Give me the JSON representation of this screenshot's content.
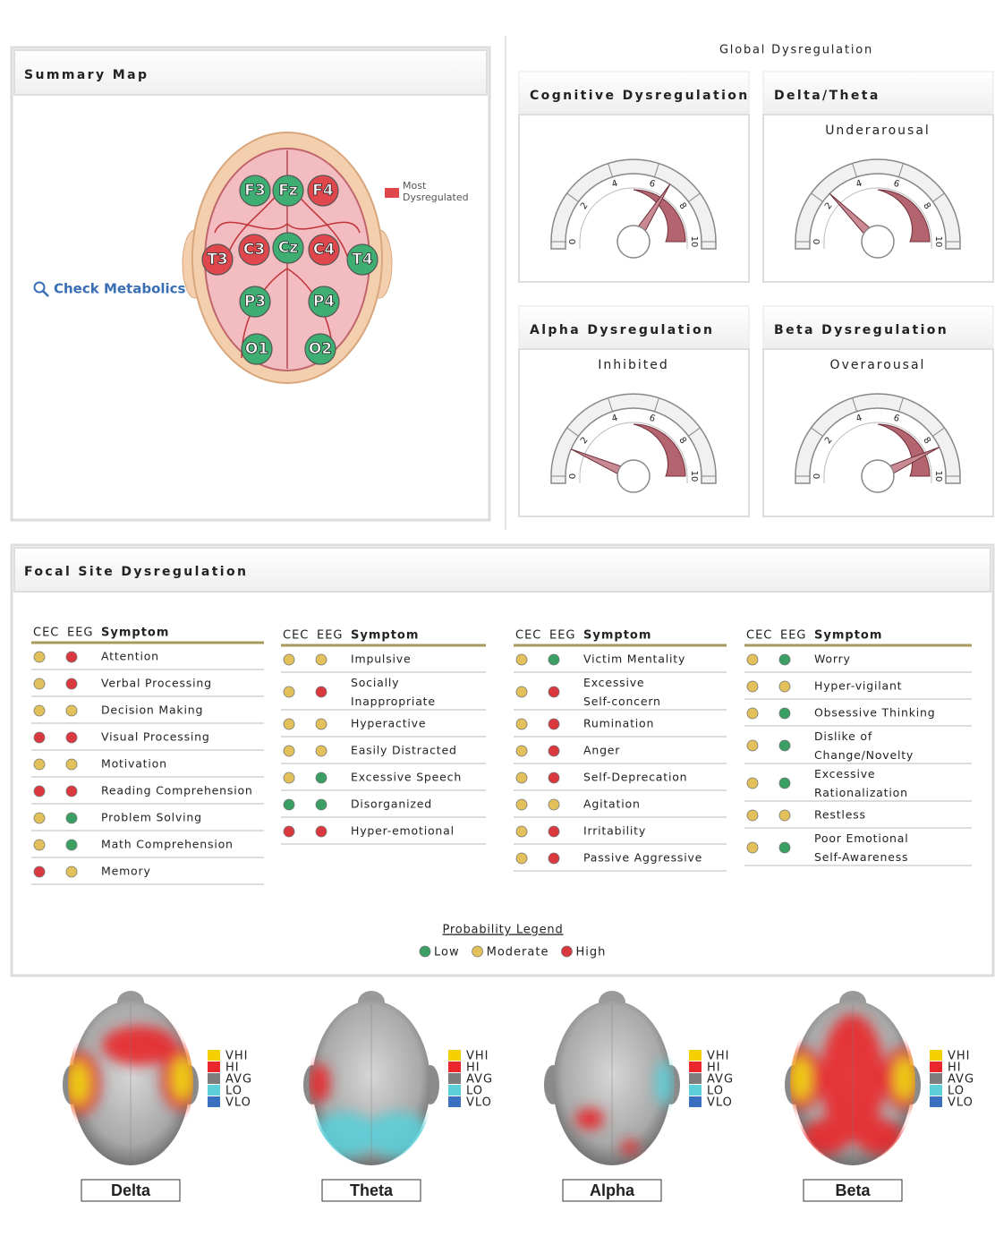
{
  "summary_map": {
    "title": "Summary Map",
    "link": "Check Metabolics",
    "legend": {
      "label": [
        "Most",
        "Dysregulated"
      ],
      "color": "#e0474c"
    },
    "electrodes": [
      {
        "label": "F3",
        "color": "#3fae73"
      },
      {
        "label": "Fz",
        "color": "#3fae73"
      },
      {
        "label": "F4",
        "color": "#e0474c"
      },
      {
        "label": "T3",
        "color": "#e0474c"
      },
      {
        "label": "C3",
        "color": "#e0474c"
      },
      {
        "label": "Cz",
        "color": "#3fae73"
      },
      {
        "label": "C4",
        "color": "#e0474c"
      },
      {
        "label": "T4",
        "color": "#3fae73"
      },
      {
        "label": "P3",
        "color": "#3fae73"
      },
      {
        "label": "P4",
        "color": "#3fae73"
      },
      {
        "label": "O1",
        "color": "#3fae73"
      },
      {
        "label": "O2",
        "color": "#3fae73"
      }
    ]
  },
  "global": {
    "title": "Global Dysregulation",
    "range": [
      0,
      10
    ],
    "ticks": [
      0,
      2,
      4,
      6,
      8,
      10
    ],
    "gauges": [
      {
        "title": "Cognitive Dysregulation",
        "value": 6.8
      },
      {
        "title": "Delta/Theta",
        "subtitle": "Underarousal",
        "value": 2.5
      },
      {
        "title": "Alpha Dysregulation",
        "subtitle": "Inhibited",
        "value": 1.3
      },
      {
        "title": "Beta Dysregulation",
        "subtitle": "Overarousal",
        "value": 8.6
      }
    ]
  },
  "focal": {
    "title": "Focal Site Dysregulation",
    "columns": [
      {
        "header": [
          "CEC",
          "EEG",
          "Symptom"
        ],
        "rows": [
          {
            "cec": "#e2c15a",
            "eeg": "#d9383f",
            "symptom": "Attention"
          },
          {
            "cec": "#e2c15a",
            "eeg": "#d9383f",
            "symptom": "Verbal Processing"
          },
          {
            "cec": "#e2c15a",
            "eeg": "#e2c15a",
            "symptom": "Decision Making"
          },
          {
            "cec": "#d9383f",
            "eeg": "#d9383f",
            "symptom": "Visual Processing"
          },
          {
            "cec": "#e2c15a",
            "eeg": "#e2c15a",
            "symptom": "Motivation"
          },
          {
            "cec": "#d9383f",
            "eeg": "#d9383f",
            "symptom": "Reading Comprehension"
          },
          {
            "cec": "#e2c15a",
            "eeg": "#3a9f63",
            "symptom": "Problem Solving"
          },
          {
            "cec": "#e2c15a",
            "eeg": "#3a9f63",
            "symptom": "Math Comprehension"
          },
          {
            "cec": "#d9383f",
            "eeg": "#e2c15a",
            "symptom": "Memory"
          }
        ]
      },
      {
        "header": [
          "CEC",
          "EEG",
          "Symptom"
        ],
        "rows": [
          {
            "cec": "#e2c15a",
            "eeg": "#e2c15a",
            "symptom": "Impulsive"
          },
          {
            "cec": "#e2c15a",
            "eeg": "#d9383f",
            "symptom": "Socially Inappropriate"
          },
          {
            "cec": "#e2c15a",
            "eeg": "#e2c15a",
            "symptom": "Hyperactive"
          },
          {
            "cec": "#e2c15a",
            "eeg": "#e2c15a",
            "symptom": "Easily Distracted"
          },
          {
            "cec": "#e2c15a",
            "eeg": "#3a9f63",
            "symptom": "Excessive Speech"
          },
          {
            "cec": "#3a9f63",
            "eeg": "#3a9f63",
            "symptom": "Disorganized"
          },
          {
            "cec": "#d9383f",
            "eeg": "#d9383f",
            "symptom": "Hyper-emotional"
          }
        ]
      },
      {
        "header": [
          "CEC",
          "EEG",
          "Symptom"
        ],
        "rows": [
          {
            "cec": "#e2c15a",
            "eeg": "#3a9f63",
            "symptom": "Victim Mentality"
          },
          {
            "cec": "#e2c15a",
            "eeg": "#d9383f",
            "symptom": "Excessive Self-concern"
          },
          {
            "cec": "#e2c15a",
            "eeg": "#d9383f",
            "symptom": "Rumination"
          },
          {
            "cec": "#e2c15a",
            "eeg": "#d9383f",
            "symptom": "Anger"
          },
          {
            "cec": "#e2c15a",
            "eeg": "#d9383f",
            "symptom": "Self-Deprecation"
          },
          {
            "cec": "#e2c15a",
            "eeg": "#e2c15a",
            "symptom": "Agitation"
          },
          {
            "cec": "#e2c15a",
            "eeg": "#d9383f",
            "symptom": "Irritability"
          },
          {
            "cec": "#e2c15a",
            "eeg": "#d9383f",
            "symptom": "Passive Aggressive"
          }
        ]
      },
      {
        "header": [
          "CEC",
          "EEG",
          "Symptom"
        ],
        "rows": [
          {
            "cec": "#e2c15a",
            "eeg": "#3a9f63",
            "symptom": "Worry"
          },
          {
            "cec": "#e2c15a",
            "eeg": "#e2c15a",
            "symptom": "Hyper-vigilant"
          },
          {
            "cec": "#e2c15a",
            "eeg": "#3a9f63",
            "symptom": "Obsessive Thinking"
          },
          {
            "cec": "#e2c15a",
            "eeg": "#3a9f63",
            "symptom": "Dislike of Change/Novelty"
          },
          {
            "cec": "#e2c15a",
            "eeg": "#3a9f63",
            "symptom": "Excessive Rationalization"
          },
          {
            "cec": "#e2c15a",
            "eeg": "#e2c15a",
            "symptom": "Restless"
          },
          {
            "cec": "#e2c15a",
            "eeg": "#3a9f63",
            "symptom": "Poor Emotional Self-Awareness"
          }
        ]
      }
    ],
    "legend": {
      "title": "Probability Legend",
      "items": [
        {
          "label": "Low",
          "color": "#3a9f63"
        },
        {
          "label": "Moderate",
          "color": "#e2c15a"
        },
        {
          "label": "High",
          "color": "#d9383f"
        }
      ]
    }
  },
  "band_maps": {
    "legend": [
      {
        "label": "VHI",
        "color": "#f5d000"
      },
      {
        "label": "HI",
        "color": "#e8262c"
      },
      {
        "label": "AVG",
        "color": "#7d7d7d"
      },
      {
        "label": "LO",
        "color": "#5ccfd8"
      },
      {
        "label": "VLO",
        "color": "#3b6fc0"
      }
    ],
    "maps": [
      {
        "label": "Delta"
      },
      {
        "label": "Theta"
      },
      {
        "label": "Alpha"
      },
      {
        "label": "Beta"
      }
    ]
  }
}
